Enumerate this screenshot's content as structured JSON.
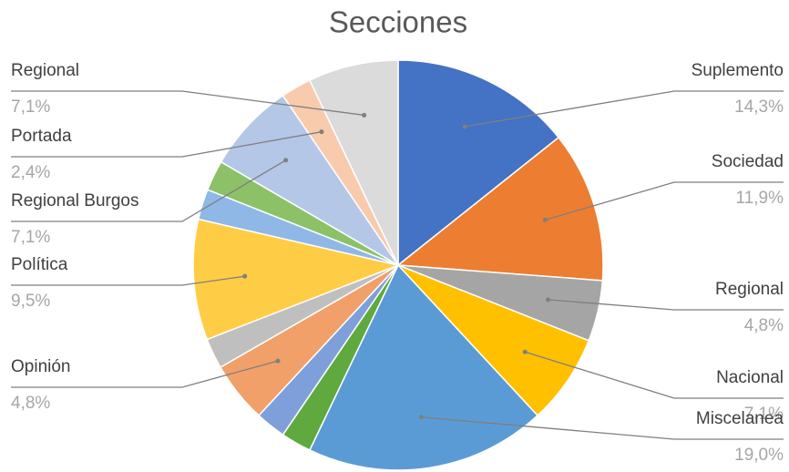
{
  "chart_data": {
    "type": "pie",
    "title": "Secciones",
    "categories": [
      "Suplemento",
      "Sociedad",
      "Regional",
      "Nacional",
      "Miscelanea",
      null,
      null,
      "Opinión",
      null,
      "Política",
      null,
      null,
      "Regional Burgos",
      "Portada",
      "Regional"
    ],
    "values": [
      14.3,
      11.9,
      4.8,
      7.1,
      19.0,
      2.4,
      2.4,
      4.8,
      2.4,
      9.5,
      2.4,
      2.4,
      7.1,
      2.4,
      7.1
    ],
    "value_labels": [
      "14,3%",
      "11,9%",
      "4,8%",
      "7,1%",
      "19,0%",
      null,
      null,
      "4,8%",
      null,
      "9,5%",
      null,
      null,
      "7,1%",
      "2,4%",
      "7,1%"
    ],
    "colors": [
      "#4472c4",
      "#ed7d31",
      "#a5a5a5",
      "#ffc000",
      "#5b9bd5",
      "#5fa93e",
      "#7f9fdb",
      "#f1a06a",
      "#bfbfbf",
      "#ffcd45",
      "#8fb8e6",
      "#8cc168",
      "#b4c7e7",
      "#f8cbad",
      "#dbdbdb"
    ]
  }
}
